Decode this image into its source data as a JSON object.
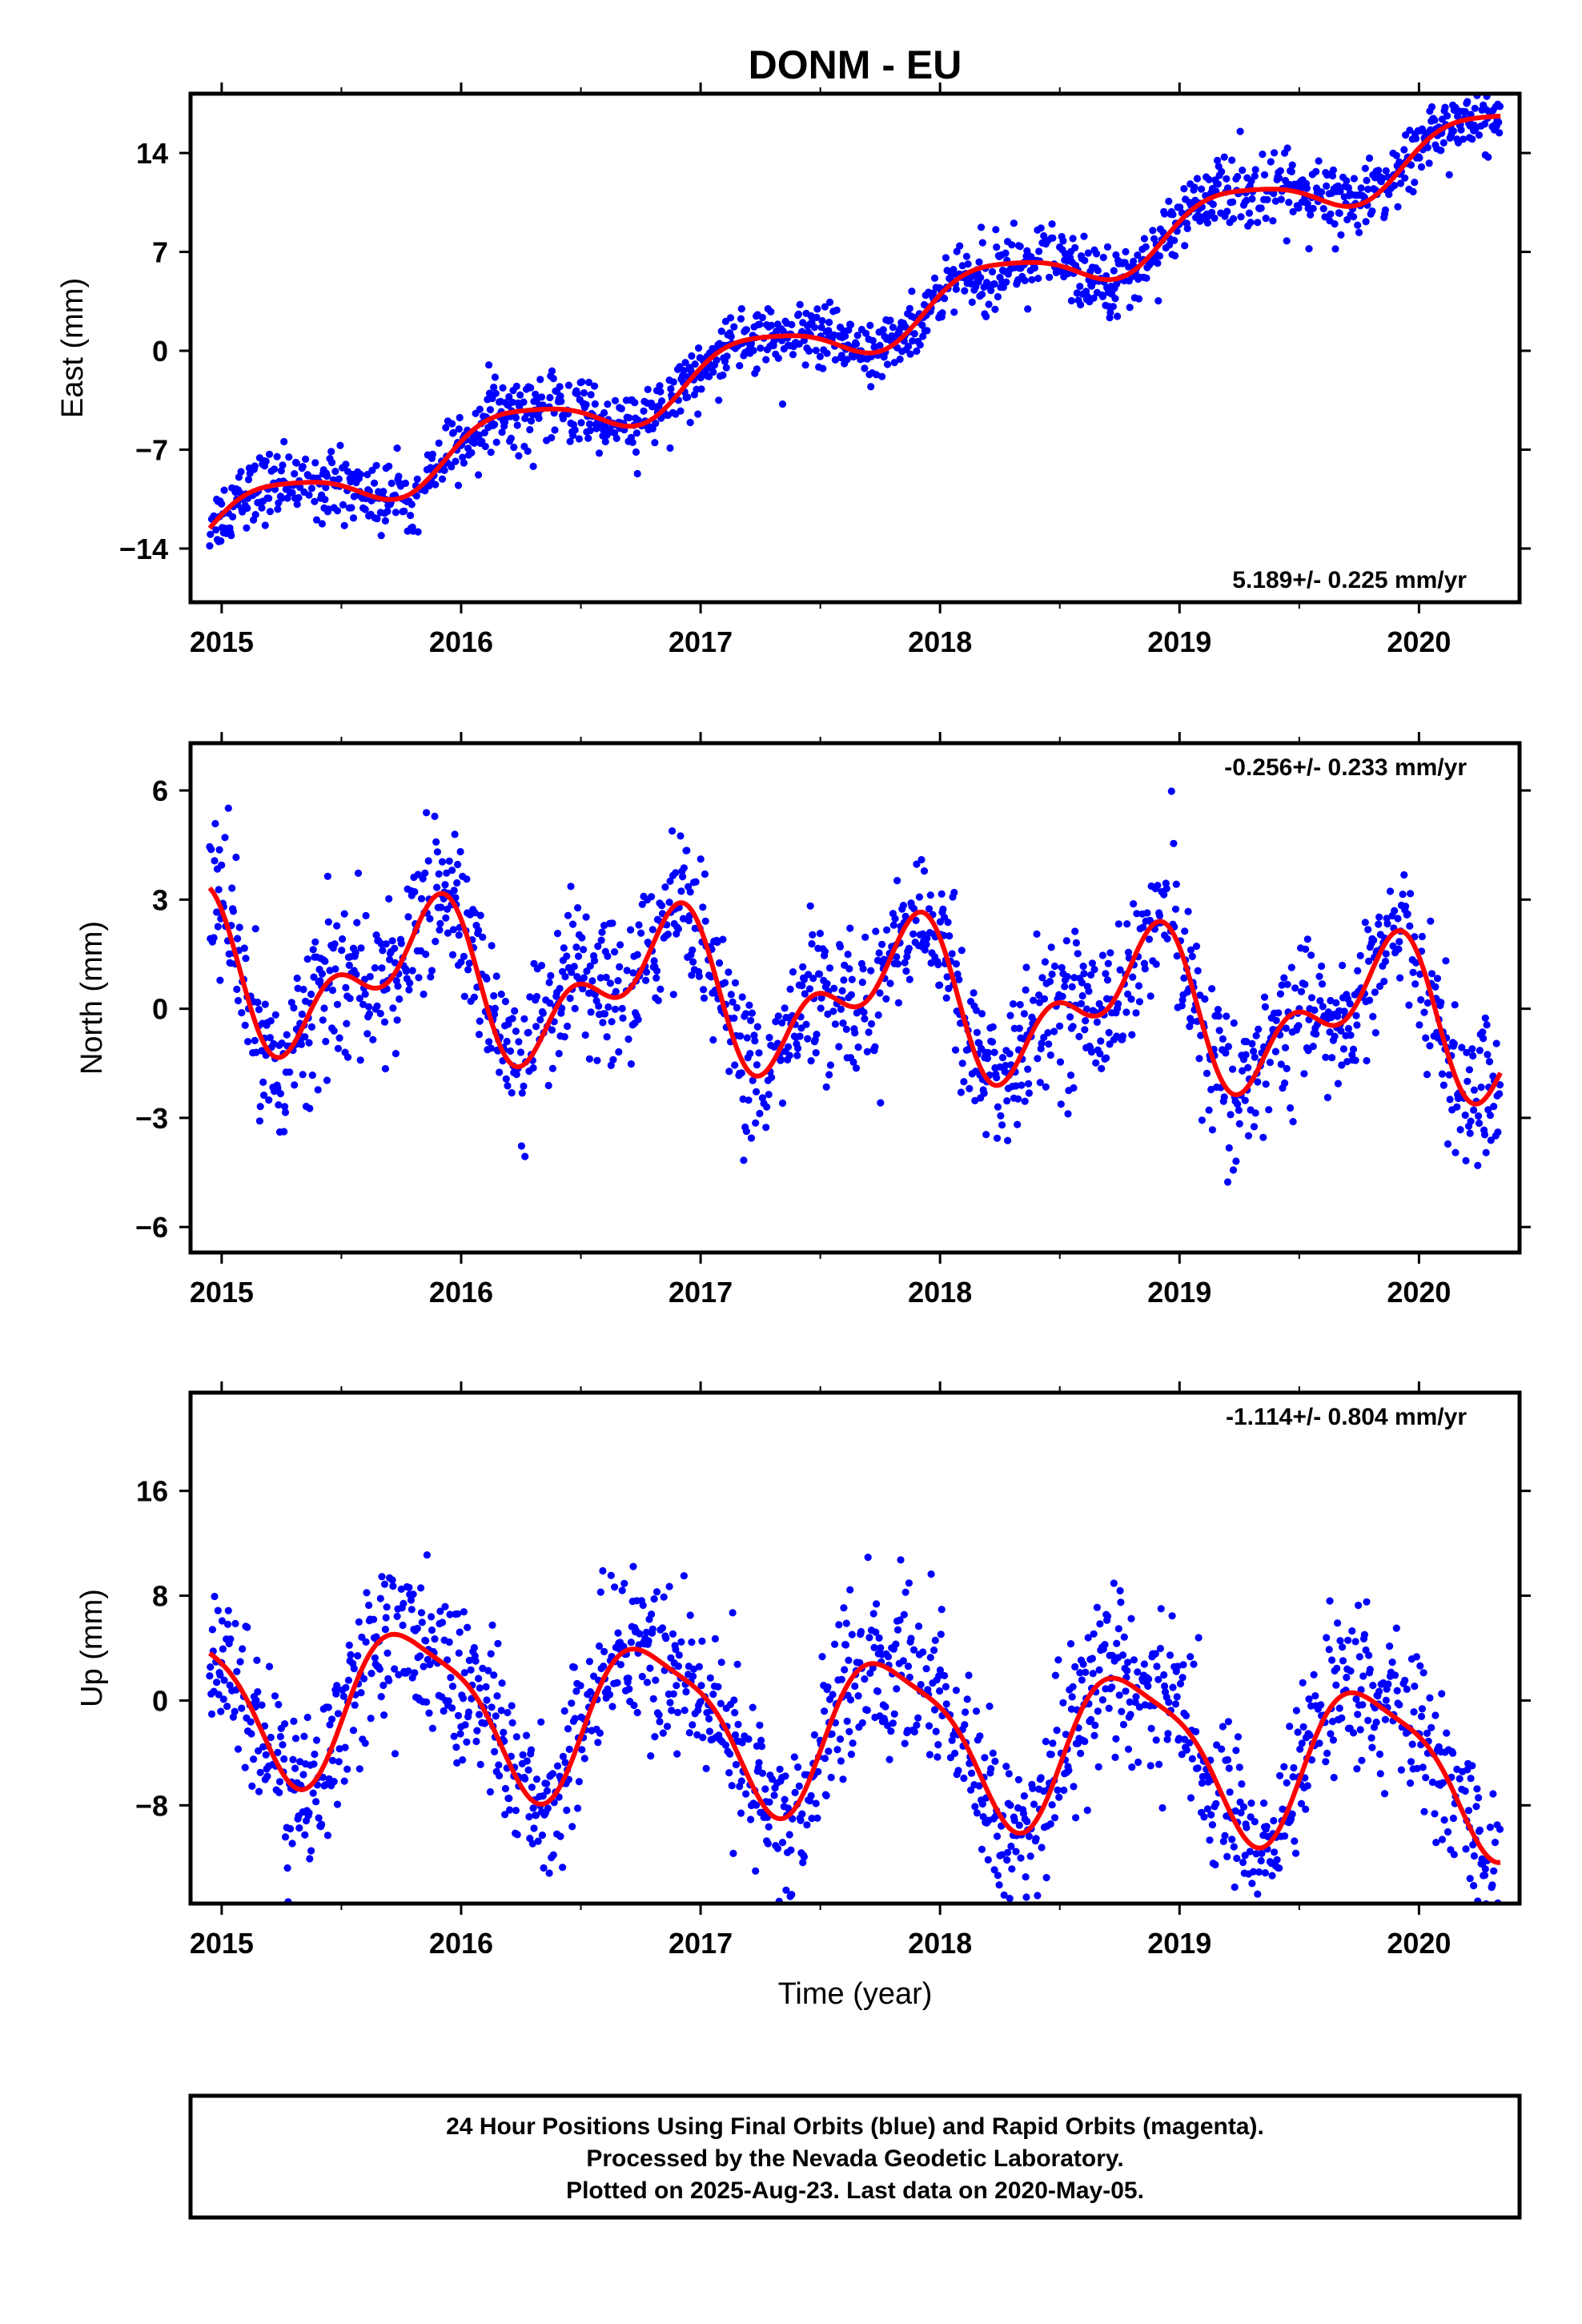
{
  "title": "DONM - EU",
  "colors": {
    "final_orbits": "#0000ff",
    "model_fit": "#ff0000",
    "frame": "#000000"
  },
  "footer": {
    "line1": "24 Hour Positions Using Final Orbits (blue) and Rapid Orbits (magenta).",
    "line2": "Processed by the Nevada Geodetic Laboratory.",
    "line3": "Plotted on 2025-Aug-23. Last data on 2020-May-05."
  },
  "chart_data": [
    {
      "type": "scatter",
      "component": "east",
      "ylabel": "East (mm)",
      "xlabel": "",
      "xlim": [
        2014.87,
        2020.42
      ],
      "ylim": [
        -17.8,
        18.2
      ],
      "x_ticks": [
        2015,
        2016,
        2017,
        2018,
        2019,
        2020
      ],
      "x_tick_labels": [
        "2015",
        "2016",
        "2017",
        "2018",
        "2019",
        "2020"
      ],
      "y_ticks": [
        -14,
        -7,
        0,
        7,
        14
      ],
      "y_tick_labels": [
        "−14",
        "−7",
        "0",
        "7",
        "14"
      ],
      "rate_label": "5.189+/- 0.225 mm/yr",
      "rate_position": "bottom-right",
      "fit": {
        "trend": 5.189,
        "offset": -12.2,
        "annual": 1.8,
        "annual_phase": 0.15,
        "semiannual": 0.35,
        "semiannual_phase": 1.2
      },
      "scatter_noise": 1.2,
      "series": [
        {
          "kind": "points",
          "color": "#0000ff"
        },
        {
          "kind": "model",
          "color": "#ff0000"
        }
      ]
    },
    {
      "type": "scatter",
      "component": "north",
      "ylabel": "North (mm)",
      "xlabel": "",
      "xlim": [
        2014.87,
        2020.42
      ],
      "ylim": [
        -6.7,
        7.3
      ],
      "x_ticks": [
        2015,
        2016,
        2017,
        2018,
        2019,
        2020
      ],
      "x_tick_labels": [
        "2015",
        "2016",
        "2017",
        "2018",
        "2019",
        "2020"
      ],
      "y_ticks": [
        -6,
        -3,
        0,
        3,
        6
      ],
      "y_tick_labels": [
        "−6",
        "−3",
        "0",
        "3",
        "6"
      ],
      "rate_label": "-0.256+/- 0.233 mm/yr",
      "rate_position": "top-right",
      "fit": {
        "trend": -0.256,
        "offset": 1.0,
        "annual": 1.6,
        "annual_phase": 2.6,
        "semiannual": 1.1,
        "semiannual_phase": 2.2
      },
      "scatter_noise": 1.0,
      "series": [
        {
          "kind": "points",
          "color": "#0000ff"
        },
        {
          "kind": "model",
          "color": "#ff0000"
        }
      ]
    },
    {
      "type": "scatter",
      "component": "up",
      "ylabel": "Up (mm)",
      "xlabel": "Time (year)",
      "xlim": [
        2014.87,
        2020.42
      ],
      "ylim": [
        -15.5,
        23.5
      ],
      "x_ticks": [
        2015,
        2016,
        2017,
        2018,
        2019,
        2020
      ],
      "x_tick_labels": [
        "2015",
        "2016",
        "2017",
        "2018",
        "2019",
        "2020"
      ],
      "y_ticks": [
        -8,
        0,
        8,
        16
      ],
      "y_tick_labels": [
        "−8",
        "0",
        "8",
        "16"
      ],
      "rate_label": "-1.114+/- 0.804 mm/yr",
      "rate_position": "top-right",
      "fit": {
        "trend": -1.114,
        "offset": 0.6,
        "annual": 5.8,
        "annual_phase": 2.8,
        "semiannual": 1.4,
        "semiannual_phase": 0.2
      },
      "scatter_noise": 3.0,
      "series": [
        {
          "kind": "points",
          "color": "#0000ff"
        },
        {
          "kind": "model",
          "color": "#ff0000"
        }
      ]
    }
  ]
}
